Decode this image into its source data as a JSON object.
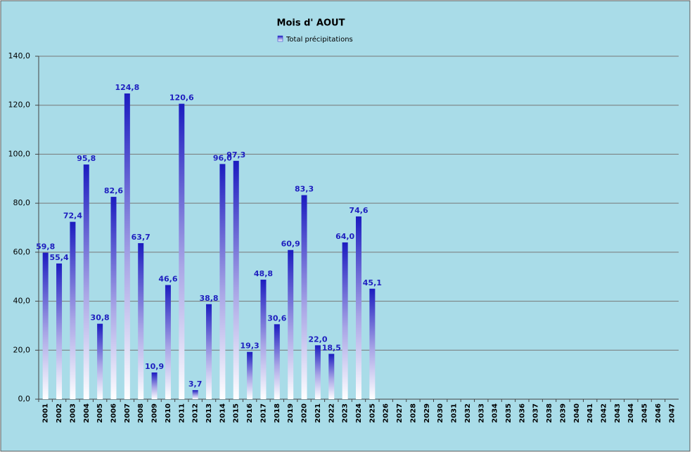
{
  "chart_data": {
    "type": "bar",
    "title": "Mois d' AOUT",
    "categories": [
      "2001",
      "2002",
      "2003",
      "2004",
      "2005",
      "2006",
      "2007",
      "2008",
      "2009",
      "2010",
      "2011",
      "2012",
      "2013",
      "2014",
      "2015",
      "2016",
      "2017",
      "2018",
      "2019",
      "2020",
      "2021",
      "2022",
      "2023",
      "2024",
      "2025",
      "2026",
      "2027",
      "2028",
      "2029",
      "2030",
      "2031",
      "2032",
      "2033",
      "2034",
      "2035",
      "2036",
      "2037",
      "2038",
      "2039",
      "2040",
      "2041",
      "2042",
      "2043",
      "2044",
      "2045",
      "2046",
      "2047"
    ],
    "series": [
      {
        "name": "Total précipitations",
        "color": "#2424c8",
        "values": [
          59.8,
          55.4,
          72.4,
          95.8,
          30.8,
          82.6,
          124.8,
          63.7,
          10.9,
          46.6,
          120.6,
          3.7,
          38.8,
          96.0,
          97.3,
          19.3,
          48.8,
          30.6,
          60.9,
          83.3,
          22.0,
          18.5,
          64.0,
          74.6,
          45.1,
          null,
          null,
          null,
          null,
          null,
          null,
          null,
          null,
          null,
          null,
          null,
          null,
          null,
          null,
          null,
          null,
          null,
          null,
          null,
          null,
          null,
          null
        ],
        "value_labels": [
          "59,8",
          "55,4",
          "72,4",
          "95,8",
          "30,8",
          "82,6",
          "124,8",
          "63,7",
          "10,9",
          "46,6",
          "120,6",
          "3,7",
          "38,8",
          "96,0",
          "97,3",
          "19,3",
          "48,8",
          "30,6",
          "60,9",
          "83,3",
          "22,0",
          "18,5",
          "64,0",
          "74,6",
          "45,1",
          null,
          null,
          null,
          null,
          null,
          null,
          null,
          null,
          null,
          null,
          null,
          null,
          null,
          null,
          null,
          null,
          null,
          null,
          null,
          null,
          null,
          null
        ]
      }
    ],
    "ylim": [
      0,
      140
    ],
    "yticks": [
      {
        "value": 0,
        "label": "0,0"
      },
      {
        "value": 20,
        "label": "20,0"
      },
      {
        "value": 40,
        "label": "40,0"
      },
      {
        "value": 60,
        "label": "60,0"
      },
      {
        "value": 80,
        "label": "80,0"
      },
      {
        "value": 100,
        "label": "100,0"
      },
      {
        "value": 120,
        "label": "120,0"
      },
      {
        "value": 140,
        "label": "140,0"
      }
    ],
    "grid": true,
    "legend": "top"
  }
}
